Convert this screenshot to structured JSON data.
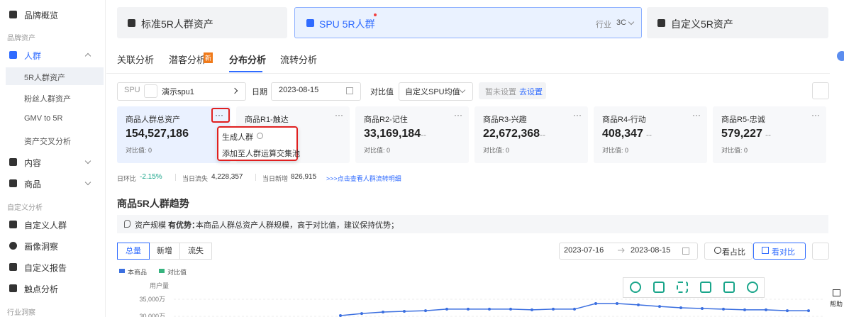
{
  "sidebar": {
    "top": "品牌概览",
    "groups": [
      {
        "title": "品牌资产",
        "items": [
          "人群",
          "5R人群资产",
          "粉丝人群资产",
          "GMV to 5R",
          "资产交叉分析",
          "内容",
          "商品"
        ]
      },
      {
        "title": "自定义分析",
        "items": [
          "自定义人群",
          "画像洞察",
          "自定义报告",
          "触点分析"
        ]
      },
      {
        "title": "行业洞察"
      }
    ]
  },
  "header_tabs": [
    {
      "label": "标准5R人群资产"
    },
    {
      "label": "SPU 5R人群",
      "industry_label": "行业",
      "industry_value": "3C"
    },
    {
      "label": "自定义5R资产"
    }
  ],
  "sub_tabs": {
    "items": [
      "关联分析",
      "潜客分析",
      "分布分析",
      "流转分析"
    ],
    "badge": "新"
  },
  "filters": {
    "spu_label": "SPU",
    "spu_value": "演示spu1",
    "date_label": "日期",
    "date": "2023-08-15",
    "compare_label": "对比值",
    "compare_value": "自定义SPU均值",
    "not_set": "暂未设置",
    "set_link": "去设置"
  },
  "metrics": {
    "more": "···",
    "items": [
      {
        "title": "商品人群总资产",
        "value": "154,527,186",
        "compare": "对比值: 0"
      },
      {
        "title": "商品R1-触达"
      },
      {
        "title": "商品R2-记住",
        "value": "33,169,184",
        "delta": "--",
        "compare": "对比值: 0"
      },
      {
        "title": "商品R3-兴趣",
        "value": "22,672,368",
        "delta": "--",
        "compare": "对比值: 0"
      },
      {
        "title": "商品R4-行动",
        "value": "408,347",
        "delta": "--",
        "compare": "对比值: 0"
      },
      {
        "title": "商品R5-忠诚",
        "value": "579,227",
        "delta": "--",
        "compare": "对比值: 0"
      }
    ]
  },
  "popup": [
    "生成人群",
    "添加至人群运算交集池"
  ],
  "stats": {
    "day_ratio_label": "日环比",
    "day_ratio": "-2.15%",
    "lost_label": "当日流失",
    "lost": "4,228,357",
    "new_label": "当日新增",
    "new": "826,915",
    "link": ">>>点击查看人群流转明细"
  },
  "trend": {
    "title": "商品5R人群趋势",
    "insight_label": "资产规模",
    "insight_strong": "有优势：",
    "insight_text": "本商品人群总资产人群规模，高于对比值，建议保持优势；",
    "segments": [
      "总量",
      "新增",
      "流失"
    ],
    "date_start": "2023-07-16",
    "date_end": "2023-08-15",
    "views": [
      "看占比",
      "看对比"
    ],
    "legend": [
      {
        "name": "本商品",
        "color": "#3b6fe0"
      },
      {
        "name": "对比值",
        "color": "#36b37e"
      }
    ],
    "chart": {
      "type": "line",
      "y_label": "用户量",
      "ylim": [
        30000,
        35000
      ],
      "yticks": [
        {
          "value": 35000,
          "label": "35,000万"
        },
        {
          "value": 30000,
          "label": "30,000万"
        }
      ],
      "values": [
        30200,
        30800,
        31250,
        31450,
        31650,
        32100,
        32100,
        32100,
        32100,
        31900,
        32100,
        32100,
        33750,
        33750,
        33350,
        32900,
        32500,
        32300,
        32100,
        31900,
        31900,
        31650,
        31650
      ]
    }
  },
  "help": "帮助"
}
